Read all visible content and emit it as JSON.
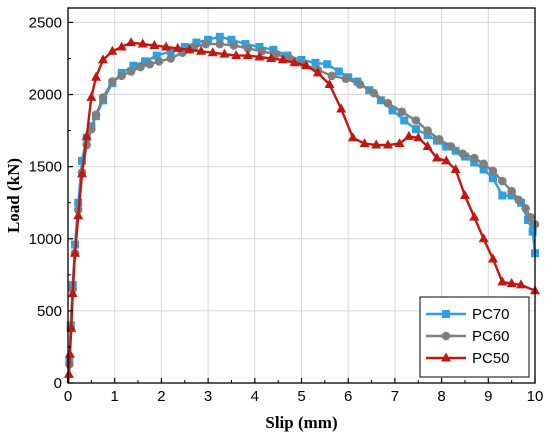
{
  "chart_data": {
    "type": "line",
    "title": "",
    "xlabel": "Slip (mm)",
    "ylabel": "Load (kN)",
    "xlim": [
      0,
      10
    ],
    "ylim": [
      0,
      2600
    ],
    "xticks": [
      0,
      1,
      2,
      3,
      4,
      5,
      6,
      7,
      8,
      9,
      10
    ],
    "yticks": [
      0,
      500,
      1000,
      1500,
      2000,
      2500
    ],
    "grid": true,
    "legend_position": "bottom-right",
    "series": [
      {
        "name": "PC70",
        "color": "#2e9fe0",
        "marker": "square",
        "x": [
          0.0,
          0.03,
          0.06,
          0.1,
          0.15,
          0.22,
          0.3,
          0.4,
          0.5,
          0.6,
          0.75,
          0.95,
          1.15,
          1.4,
          1.65,
          1.9,
          2.2,
          2.5,
          2.75,
          3.0,
          3.25,
          3.5,
          3.8,
          4.1,
          4.4,
          4.7,
          5.0,
          5.3,
          5.55,
          5.8,
          6.0,
          6.2,
          6.45,
          6.7,
          6.95,
          7.2,
          7.45,
          7.7,
          7.9,
          8.1,
          8.3,
          8.5,
          8.7,
          8.9,
          9.1,
          9.3,
          9.5,
          9.7,
          9.85,
          9.95,
          10.0
        ],
        "y": [
          0,
          150,
          400,
          680,
          960,
          1250,
          1540,
          1700,
          1780,
          1850,
          1960,
          2080,
          2150,
          2200,
          2230,
          2270,
          2300,
          2330,
          2360,
          2380,
          2400,
          2380,
          2350,
          2330,
          2310,
          2270,
          2240,
          2220,
          2210,
          2160,
          2120,
          2090,
          2030,
          1960,
          1890,
          1820,
          1760,
          1720,
          1680,
          1640,
          1610,
          1570,
          1530,
          1480,
          1420,
          1300,
          1300,
          1250,
          1130,
          1050,
          900
        ]
      },
      {
        "name": "PC60",
        "color": "#7f7f7f",
        "marker": "circle",
        "x": [
          0.0,
          0.03,
          0.06,
          0.1,
          0.15,
          0.22,
          0.3,
          0.4,
          0.5,
          0.6,
          0.75,
          0.95,
          1.15,
          1.35,
          1.55,
          1.75,
          1.95,
          2.2,
          2.45,
          2.7,
          2.95,
          3.25,
          3.55,
          3.85,
          4.15,
          4.45,
          4.75,
          5.05,
          5.35,
          5.65,
          5.95,
          6.25,
          6.55,
          6.85,
          7.15,
          7.45,
          7.7,
          7.95,
          8.2,
          8.45,
          8.7,
          8.9,
          9.1,
          9.3,
          9.5,
          9.65,
          9.8,
          9.9,
          10.0
        ],
        "y": [
          0,
          130,
          380,
          650,
          900,
          1200,
          1460,
          1650,
          1760,
          1860,
          1980,
          2090,
          2130,
          2160,
          2190,
          2210,
          2230,
          2250,
          2290,
          2330,
          2350,
          2350,
          2340,
          2320,
          2300,
          2280,
          2250,
          2210,
          2170,
          2130,
          2110,
          2070,
          2010,
          1940,
          1880,
          1820,
          1750,
          1690,
          1640,
          1590,
          1560,
          1520,
          1470,
          1400,
          1330,
          1270,
          1210,
          1150,
          1100
        ]
      },
      {
        "name": "PC50",
        "color": "#c0180f",
        "marker": "triangle",
        "x": [
          0.0,
          0.02,
          0.04,
          0.07,
          0.1,
          0.15,
          0.22,
          0.3,
          0.4,
          0.5,
          0.6,
          0.75,
          0.95,
          1.15,
          1.35,
          1.6,
          1.85,
          2.1,
          2.35,
          2.6,
          2.85,
          3.1,
          3.35,
          3.6,
          3.85,
          4.1,
          4.35,
          4.6,
          4.85,
          5.1,
          5.35,
          5.6,
          5.85,
          6.1,
          6.35,
          6.6,
          6.85,
          7.1,
          7.3,
          7.5,
          7.7,
          7.9,
          8.1,
          8.3,
          8.5,
          8.7,
          8.9,
          9.1,
          9.3,
          9.5,
          9.7,
          10.0
        ],
        "y": [
          0,
          60,
          200,
          380,
          620,
          900,
          1160,
          1450,
          1710,
          1980,
          2120,
          2240,
          2300,
          2330,
          2360,
          2350,
          2340,
          2330,
          2320,
          2310,
          2300,
          2290,
          2280,
          2270,
          2270,
          2260,
          2250,
          2240,
          2220,
          2200,
          2150,
          2070,
          1900,
          1700,
          1660,
          1650,
          1650,
          1660,
          1710,
          1700,
          1640,
          1560,
          1540,
          1480,
          1300,
          1150,
          1000,
          860,
          700,
          690,
          680,
          640
        ]
      }
    ]
  }
}
